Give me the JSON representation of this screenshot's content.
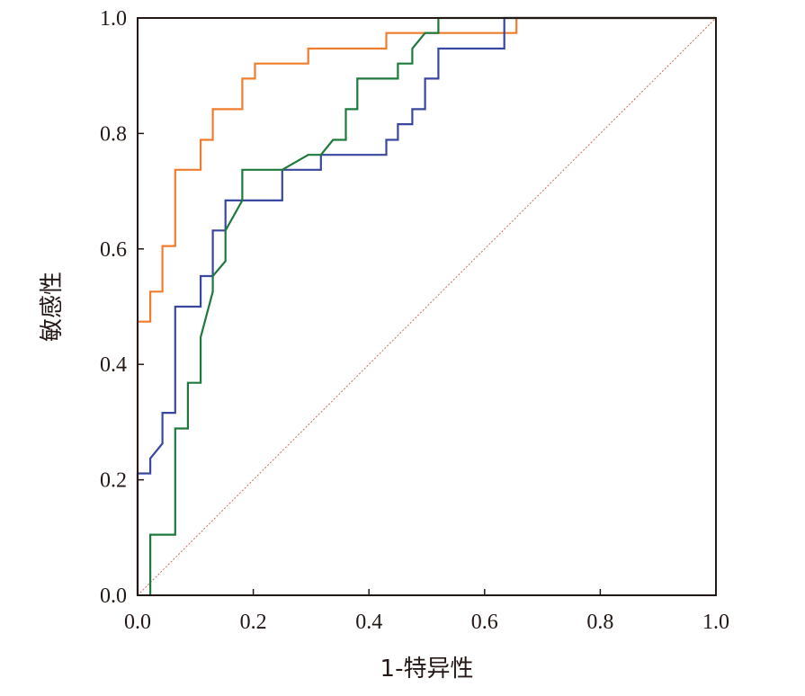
{
  "chart_data": {
    "type": "line",
    "title": "",
    "xlabel": "1-特异性",
    "ylabel": "敏感性",
    "xlim": [
      0,
      1
    ],
    "ylim": [
      0,
      1
    ],
    "xticks": [
      "0.0",
      "0.2",
      "0.4",
      "0.6",
      "0.8",
      "1.0"
    ],
    "yticks": [
      "0.0",
      "0.2",
      "0.4",
      "0.6",
      "0.8",
      "1.0"
    ],
    "grid": false,
    "legend": "none",
    "colors": {
      "orange": "#ef7d2d",
      "blue": "#3a47a0",
      "green": "#1e7a3c",
      "reference": "#d7695a",
      "axis": "#231815"
    },
    "reference_line": {
      "points": [
        [
          0,
          0
        ],
        [
          1,
          1
        ]
      ],
      "style": "dotted"
    },
    "series": [
      {
        "color": "orange",
        "points": [
          [
            0.0,
            0.0
          ],
          [
            0.0,
            0.474
          ],
          [
            0.022,
            0.474
          ],
          [
            0.022,
            0.526
          ],
          [
            0.043,
            0.526
          ],
          [
            0.043,
            0.605
          ],
          [
            0.065,
            0.605
          ],
          [
            0.065,
            0.737
          ],
          [
            0.109,
            0.737
          ],
          [
            0.109,
            0.789
          ],
          [
            0.13,
            0.789
          ],
          [
            0.13,
            0.842
          ],
          [
            0.181,
            0.842
          ],
          [
            0.181,
            0.895
          ],
          [
            0.203,
            0.895
          ],
          [
            0.203,
            0.921
          ],
          [
            0.295,
            0.921
          ],
          [
            0.295,
            0.947
          ],
          [
            0.43,
            0.947
          ],
          [
            0.43,
            0.974
          ],
          [
            0.64,
            0.974
          ],
          [
            0.655,
            0.974
          ],
          [
            0.655,
            1.0
          ],
          [
            1.0,
            1.0
          ]
        ]
      },
      {
        "color": "blue",
        "points": [
          [
            0.0,
            0.0
          ],
          [
            0.0,
            0.211
          ],
          [
            0.022,
            0.211
          ],
          [
            0.022,
            0.237
          ],
          [
            0.043,
            0.263
          ],
          [
            0.043,
            0.316
          ],
          [
            0.065,
            0.316
          ],
          [
            0.065,
            0.5
          ],
          [
            0.109,
            0.5
          ],
          [
            0.109,
            0.553
          ],
          [
            0.13,
            0.553
          ],
          [
            0.13,
            0.632
          ],
          [
            0.152,
            0.632
          ],
          [
            0.152,
            0.684
          ],
          [
            0.25,
            0.684
          ],
          [
            0.25,
            0.737
          ],
          [
            0.317,
            0.737
          ],
          [
            0.317,
            0.763
          ],
          [
            0.43,
            0.763
          ],
          [
            0.43,
            0.789
          ],
          [
            0.45,
            0.789
          ],
          [
            0.45,
            0.816
          ],
          [
            0.475,
            0.816
          ],
          [
            0.475,
            0.842
          ],
          [
            0.497,
            0.842
          ],
          [
            0.497,
            0.895
          ],
          [
            0.52,
            0.895
          ],
          [
            0.52,
            0.947
          ],
          [
            0.634,
            0.947
          ],
          [
            0.634,
            1.0
          ],
          [
            1.0,
            1.0
          ]
        ]
      },
      {
        "color": "green",
        "points": [
          [
            0.022,
            0.0
          ],
          [
            0.022,
            0.105
          ],
          [
            0.065,
            0.105
          ],
          [
            0.065,
            0.289
          ],
          [
            0.087,
            0.289
          ],
          [
            0.087,
            0.368
          ],
          [
            0.109,
            0.368
          ],
          [
            0.109,
            0.447
          ],
          [
            0.13,
            0.526
          ],
          [
            0.13,
            0.553
          ],
          [
            0.152,
            0.579
          ],
          [
            0.152,
            0.632
          ],
          [
            0.181,
            0.684
          ],
          [
            0.181,
            0.737
          ],
          [
            0.25,
            0.737
          ],
          [
            0.295,
            0.763
          ],
          [
            0.317,
            0.763
          ],
          [
            0.338,
            0.789
          ],
          [
            0.36,
            0.789
          ],
          [
            0.36,
            0.842
          ],
          [
            0.38,
            0.842
          ],
          [
            0.38,
            0.895
          ],
          [
            0.45,
            0.895
          ],
          [
            0.45,
            0.921
          ],
          [
            0.475,
            0.921
          ],
          [
            0.475,
            0.947
          ],
          [
            0.497,
            0.974
          ],
          [
            0.52,
            0.974
          ],
          [
            0.52,
            1.0
          ],
          [
            1.0,
            1.0
          ]
        ]
      }
    ]
  }
}
